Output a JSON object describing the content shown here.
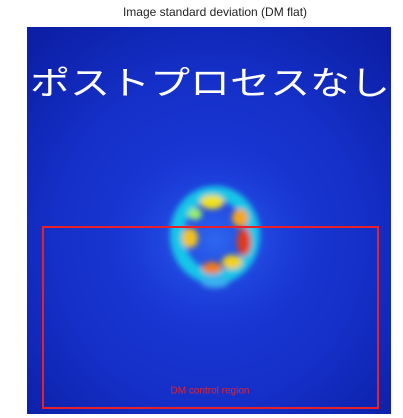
{
  "title": "Image standard deviation (DM flat)",
  "overlay_text": "ポストプロセスなし",
  "region_label": "DM control region"
}
